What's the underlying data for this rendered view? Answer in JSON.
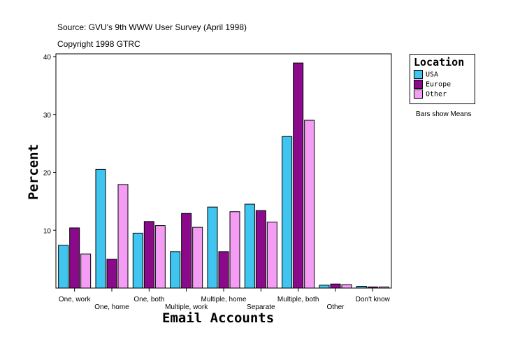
{
  "chart_data": {
    "type": "bar",
    "source": "Source: GVU's 9th WWW User Survey (April 1998)",
    "copyright": "Copyright 1998 GTRC",
    "xlabel": "Email Accounts",
    "ylabel": "Percent",
    "ylim": [
      0,
      40
    ],
    "yticks": [
      "10",
      "20",
      "30",
      "40"
    ],
    "categories": [
      "One, work",
      "One, home",
      "One, both",
      "Multiple, work",
      "Multiple, home",
      "Separate",
      "Multiple, both",
      "Other",
      "Don't know"
    ],
    "series": [
      {
        "name": "USA",
        "color": "#3fc5f0",
        "values": [
          7.4,
          20.5,
          9.5,
          6.3,
          14.0,
          14.5,
          26.2,
          0.5,
          0.3
        ]
      },
      {
        "name": "Europe",
        "color": "#8b0a8b",
        "values": [
          10.4,
          5.0,
          11.5,
          12.9,
          6.3,
          13.4,
          38.9,
          0.7,
          0.2
        ]
      },
      {
        "name": "Other",
        "color": "#f59df5",
        "values": [
          5.9,
          17.9,
          10.8,
          10.5,
          13.2,
          11.4,
          29.0,
          0.6,
          0.2
        ]
      }
    ],
    "legend_title": "Location",
    "legend_position": "right",
    "note": "Bars show Means"
  }
}
